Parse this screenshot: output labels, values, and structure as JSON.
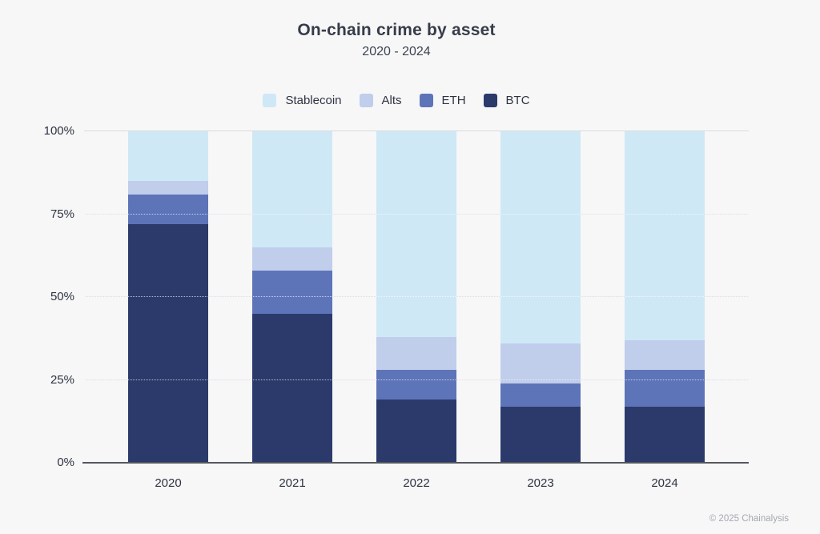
{
  "page": {
    "background": "#f7f7f8"
  },
  "chart_data": {
    "type": "bar",
    "stacked": true,
    "unit": "percent",
    "title": "On-chain crime by asset",
    "subtitle": "2020 - 2024",
    "categories": [
      "2020",
      "2021",
      "2022",
      "2023",
      "2024"
    ],
    "series": [
      {
        "name": "Stablecoin",
        "color": "#cfe8f6",
        "values": [
          15,
          35,
          62,
          64,
          63
        ]
      },
      {
        "name": "Alts",
        "color": "#c0cdeb",
        "values": [
          4,
          7,
          10,
          12,
          9
        ]
      },
      {
        "name": "ETH",
        "color": "#5d74b9",
        "values": [
          9,
          13,
          9,
          7,
          11
        ]
      },
      {
        "name": "BTC",
        "color": "#2b3a6b",
        "values": [
          72,
          45,
          19,
          17,
          17
        ]
      }
    ],
    "stack_order_bottom_to_top": [
      "BTC",
      "ETH",
      "Alts",
      "Stablecoin"
    ],
    "ylim": [
      0,
      100
    ],
    "yticks": [
      {
        "label": "0%",
        "value": 0
      },
      {
        "label": "25%",
        "value": 25
      },
      {
        "label": "50%",
        "value": 50
      },
      {
        "label": "75%",
        "value": 75
      },
      {
        "label": "100%",
        "value": 100
      }
    ],
    "legend_position": "top",
    "grid": true,
    "grid_color": "#dfe0e4",
    "axis_color": "#55575c",
    "label_color": "#2e3340"
  },
  "footer": {
    "copyright": "© 2025 Chainalysis"
  }
}
